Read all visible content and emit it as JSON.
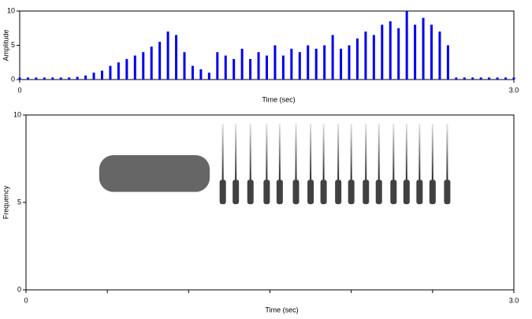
{
  "chart_data": [
    {
      "type": "waveform",
      "xlabel": "Time (sec)",
      "ylabel": "Amplitude",
      "color": "#0000ee",
      "xlim": [
        0,
        3
      ],
      "xticks": [
        0,
        {
          "value": 3,
          "label": "3.0"
        }
      ],
      "ylim": [
        0,
        10
      ],
      "yticks": [
        0,
        5,
        10
      ],
      "x": [
        0,
        0.05,
        0.1,
        0.15,
        0.2,
        0.25,
        0.3,
        0.35,
        0.4,
        0.45,
        0.5,
        0.55,
        0.6,
        0.65,
        0.7,
        0.75,
        0.8,
        0.85,
        0.9,
        0.95,
        1.0,
        1.05,
        1.1,
        1.15,
        1.2,
        1.25,
        1.3,
        1.35,
        1.4,
        1.45,
        1.5,
        1.55,
        1.6,
        1.65,
        1.7,
        1.75,
        1.8,
        1.85,
        1.9,
        1.95,
        2.0,
        2.05,
        2.1,
        2.15,
        2.2,
        2.25,
        2.3,
        2.35,
        2.4,
        2.45,
        2.5,
        2.55,
        2.6,
        2.65,
        2.7,
        2.75,
        2.8,
        2.85,
        2.9,
        2.95,
        3.0
      ],
      "values": [
        0.3,
        0.3,
        0.3,
        0.3,
        0.3,
        0.3,
        0.3,
        0.4,
        0.6,
        1,
        1.3,
        2,
        2.5,
        3,
        3.5,
        4,
        4.8,
        5.5,
        7,
        6.5,
        4,
        2,
        1.5,
        1,
        4,
        3.5,
        3,
        4.5,
        3,
        4,
        3.5,
        5,
        3.5,
        4.5,
        4,
        5,
        4.5,
        5,
        6.5,
        4.5,
        5,
        6,
        7,
        6.5,
        8,
        8.5,
        7.5,
        10,
        8,
        9,
        8,
        7,
        5,
        0.3,
        0.3,
        0.3,
        0.3,
        0.3,
        0.3,
        0.3,
        0.3
      ]
    },
    {
      "type": "spectrogram",
      "xlabel": "Time (sec)",
      "ylabel": "Frequency",
      "xlim": [
        0,
        3
      ],
      "xticks": [
        0,
        {
          "value": 3,
          "label": "3.0"
        }
      ],
      "minor_xticks": [
        0.5,
        1,
        1.5,
        2,
        2.5
      ],
      "ylim": [
        0,
        10
      ],
      "yticks": [
        0,
        5,
        10
      ],
      "buzz": {
        "start": 0.45,
        "end": 1.13,
        "fmin": 5.6,
        "fmax": 7.7
      },
      "pulse_times": [
        1.21,
        1.29,
        1.38,
        1.48,
        1.56,
        1.66,
        1.75,
        1.83,
        1.92,
        2.0,
        2.09,
        2.17,
        2.26,
        2.34,
        2.42,
        2.5,
        2.59
      ],
      "pulse_band": [
        4.9,
        6.3
      ],
      "pulse_top": 9.5
    }
  ]
}
